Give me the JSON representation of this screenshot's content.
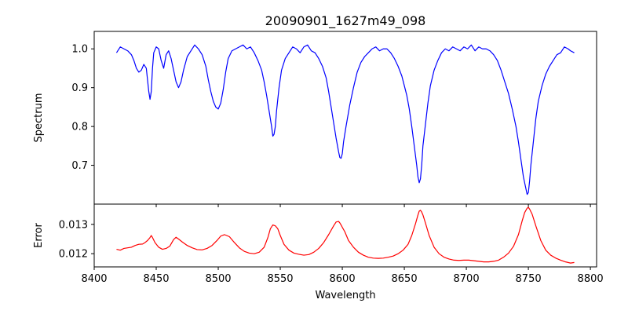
{
  "chart_data": [
    {
      "type": "line",
      "title": "20090901_1627m49_098",
      "xlabel": "",
      "ylabel": "Spectrum",
      "xlim": [
        8400,
        8805
      ],
      "ylim": [
        0.6,
        1.045
      ],
      "xticks": [
        8400,
        8450,
        8500,
        8550,
        8600,
        8650,
        8700,
        8750,
        8800
      ],
      "yticks": [
        0.7,
        0.8,
        0.9,
        1.0
      ],
      "ytick_labels": [
        "0.7",
        "0.8",
        "0.9",
        "1.0"
      ],
      "grid": false,
      "color": "#0000ff",
      "series": [
        {
          "x": [
            8418,
            8421,
            8424,
            8427,
            8430,
            8432,
            8434,
            8436,
            8438,
            8440,
            8442,
            8443,
            8444,
            8445,
            8446,
            8447,
            8448,
            8450,
            8452,
            8454,
            8456,
            8458,
            8460,
            8462,
            8464,
            8466,
            8468,
            8470,
            8472,
            8475,
            8478,
            8481,
            8484,
            8487,
            8490,
            8492,
            8494,
            8496,
            8498,
            8500,
            8502,
            8504,
            8506,
            8508,
            8511,
            8514,
            8517,
            8520,
            8523,
            8526,
            8529,
            8532,
            8535,
            8537,
            8539,
            8541,
            8543,
            8544,
            8545,
            8546,
            8547,
            8549,
            8551,
            8554,
            8557,
            8560,
            8563,
            8566,
            8569,
            8572,
            8575,
            8578,
            8581,
            8584,
            8587,
            8589,
            8591,
            8593,
            8595,
            8597,
            8598,
            8599,
            8600,
            8601,
            8603,
            8606,
            8609,
            8612,
            8615,
            8618,
            8621,
            8624,
            8627,
            8630,
            8633,
            8636,
            8639,
            8642,
            8645,
            8648,
            8650,
            8652,
            8654,
            8656,
            8658,
            8660,
            8661,
            8662,
            8663,
            8664,
            8665,
            8667,
            8669,
            8671,
            8674,
            8677,
            8680,
            8683,
            8686,
            8689,
            8692,
            8695,
            8698,
            8701,
            8704,
            8707,
            8710,
            8713,
            8716,
            8719,
            8722,
            8725,
            8728,
            8731,
            8734,
            8737,
            8740,
            8742,
            8744,
            8746,
            8748,
            8749,
            8750,
            8751,
            8752,
            8754,
            8756,
            8758,
            8761,
            8764,
            8767,
            8770,
            8773,
            8776,
            8779,
            8782,
            8784,
            8787
          ],
          "y": [
            0.99,
            1.005,
            1.0,
            0.995,
            0.985,
            0.97,
            0.95,
            0.94,
            0.945,
            0.96,
            0.95,
            0.92,
            0.89,
            0.87,
            0.89,
            0.95,
            0.99,
            1.005,
            1.0,
            0.97,
            0.95,
            0.985,
            0.995,
            0.975,
            0.945,
            0.915,
            0.9,
            0.915,
            0.945,
            0.98,
            0.995,
            1.01,
            1.0,
            0.985,
            0.955,
            0.92,
            0.89,
            0.865,
            0.85,
            0.845,
            0.86,
            0.895,
            0.94,
            0.975,
            0.995,
            1.0,
            1.005,
            1.01,
            1.0,
            1.005,
            0.99,
            0.97,
            0.945,
            0.915,
            0.88,
            0.84,
            0.8,
            0.775,
            0.78,
            0.8,
            0.84,
            0.9,
            0.945,
            0.975,
            0.99,
            1.005,
            1.0,
            0.99,
            1.005,
            1.01,
            0.995,
            0.99,
            0.975,
            0.955,
            0.925,
            0.89,
            0.85,
            0.81,
            0.77,
            0.735,
            0.72,
            0.718,
            0.73,
            0.76,
            0.8,
            0.855,
            0.9,
            0.94,
            0.965,
            0.98,
            0.99,
            1.0,
            1.005,
            0.995,
            1.0,
            1.0,
            0.99,
            0.975,
            0.955,
            0.93,
            0.905,
            0.88,
            0.845,
            0.8,
            0.75,
            0.7,
            0.67,
            0.655,
            0.665,
            0.7,
            0.75,
            0.805,
            0.86,
            0.905,
            0.945,
            0.97,
            0.99,
            1.0,
            0.995,
            1.005,
            1.0,
            0.995,
            1.005,
            1.0,
            1.01,
            0.995,
            1.005,
            1.0,
            1.0,
            0.995,
            0.985,
            0.97,
            0.945,
            0.915,
            0.885,
            0.845,
            0.8,
            0.76,
            0.715,
            0.67,
            0.64,
            0.625,
            0.63,
            0.66,
            0.7,
            0.76,
            0.82,
            0.865,
            0.905,
            0.935,
            0.955,
            0.97,
            0.985,
            0.99,
            1.005,
            1.0,
            0.995,
            0.99
          ]
        }
      ]
    },
    {
      "type": "line",
      "title": "",
      "xlabel": "Wavelength",
      "ylabel": "Error",
      "xlim": [
        8400,
        8805
      ],
      "ylim": [
        0.01155,
        0.01369
      ],
      "xticks": [
        8400,
        8450,
        8500,
        8550,
        8600,
        8650,
        8700,
        8750,
        8800
      ],
      "xtick_labels": [
        "8400",
        "8450",
        "8500",
        "8550",
        "8600",
        "8650",
        "8700",
        "8750",
        "8800"
      ],
      "yticks": [
        0.012,
        0.013
      ],
      "ytick_labels": [
        "0.012",
        "0.013"
      ],
      "grid": false,
      "color": "#ff0000",
      "series": [
        {
          "x": [
            8418,
            8421,
            8424,
            8427,
            8430,
            8433,
            8436,
            8439,
            8441,
            8443,
            8445,
            8446,
            8447,
            8449,
            8452,
            8455,
            8458,
            8461,
            8464,
            8466,
            8468,
            8471,
            8475,
            8479,
            8483,
            8487,
            8491,
            8495,
            8499,
            8502,
            8505,
            8509,
            8513,
            8517,
            8521,
            8525,
            8529,
            8533,
            8537,
            8540,
            8542,
            8544,
            8546,
            8548,
            8550,
            8553,
            8557,
            8561,
            8565,
            8569,
            8573,
            8577,
            8581,
            8585,
            8589,
            8593,
            8595,
            8597,
            8598,
            8599,
            8600,
            8602,
            8605,
            8609,
            8613,
            8617,
            8621,
            8625,
            8629,
            8633,
            8637,
            8641,
            8645,
            8649,
            8653,
            8656,
            8659,
            8661,
            8662,
            8663,
            8664,
            8665,
            8667,
            8670,
            8674,
            8678,
            8682,
            8686,
            8690,
            8694,
            8698,
            8702,
            8706,
            8710,
            8714,
            8718,
            8722,
            8726,
            8730,
            8734,
            8738,
            8742,
            8745,
            8747,
            8749,
            8750,
            8751,
            8753,
            8756,
            8760,
            8764,
            8768,
            8772,
            8776,
            8780,
            8784,
            8787
          ],
          "y": [
            0.01215,
            0.01212,
            0.01218,
            0.0122,
            0.01222,
            0.01228,
            0.01232,
            0.01233,
            0.01238,
            0.01245,
            0.01255,
            0.01262,
            0.01255,
            0.01238,
            0.01222,
            0.01215,
            0.01218,
            0.01226,
            0.01248,
            0.01256,
            0.0125,
            0.0124,
            0.01228,
            0.0122,
            0.01214,
            0.01213,
            0.01218,
            0.01228,
            0.01245,
            0.0126,
            0.01265,
            0.01258,
            0.01238,
            0.0122,
            0.01208,
            0.01202,
            0.012,
            0.01205,
            0.01222,
            0.01255,
            0.01285,
            0.01298,
            0.01295,
            0.01285,
            0.01262,
            0.01232,
            0.01212,
            0.01202,
            0.01198,
            0.01195,
            0.01197,
            0.01205,
            0.01218,
            0.01238,
            0.01265,
            0.01295,
            0.01308,
            0.0131,
            0.01305,
            0.01298,
            0.0129,
            0.01275,
            0.01245,
            0.01222,
            0.01205,
            0.01195,
            0.01188,
            0.01185,
            0.01184,
            0.01185,
            0.01188,
            0.01192,
            0.012,
            0.01212,
            0.01232,
            0.01262,
            0.01302,
            0.01332,
            0.01345,
            0.01348,
            0.01342,
            0.01332,
            0.01305,
            0.01262,
            0.01222,
            0.012,
            0.01188,
            0.01182,
            0.01178,
            0.01177,
            0.01178,
            0.01178,
            0.01176,
            0.01174,
            0.01172,
            0.01172,
            0.01174,
            0.01178,
            0.01188,
            0.01202,
            0.01225,
            0.01265,
            0.01312,
            0.0134,
            0.01355,
            0.01358,
            0.01352,
            0.01335,
            0.01295,
            0.01245,
            0.01212,
            0.01195,
            0.01185,
            0.01178,
            0.01172,
            0.01168,
            0.0117
          ]
        }
      ]
    }
  ]
}
